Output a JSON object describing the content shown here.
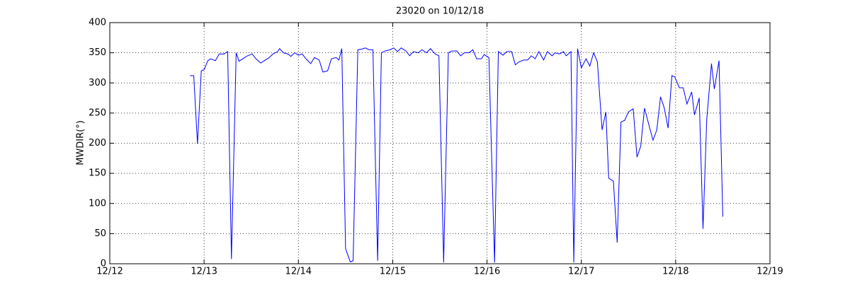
{
  "chart_data": {
    "type": "line",
    "title": "23020 on 10/12/18",
    "y_label": "MWDIR(°)",
    "xlim": [
      12,
      19
    ],
    "xticks": [
      {
        "value": 12,
        "label": "12/12"
      },
      {
        "value": 13,
        "label": "12/13"
      },
      {
        "value": 14,
        "label": "12/14"
      },
      {
        "value": 15,
        "label": "12/15"
      },
      {
        "value": 16,
        "label": "12/16"
      },
      {
        "value": 17,
        "label": "12/17"
      },
      {
        "value": 18,
        "label": "12/18"
      },
      {
        "value": 19,
        "label": "12/19"
      }
    ],
    "ylim": [
      0,
      400
    ],
    "yticks": [
      0,
      50,
      100,
      150,
      200,
      250,
      300,
      350,
      400
    ],
    "grid": true,
    "x": [
      12.85,
      12.89,
      12.93,
      12.97,
      13.0,
      13.04,
      13.07,
      13.12,
      13.16,
      13.21,
      13.25,
      13.29,
      13.34,
      13.37,
      13.42,
      13.46,
      13.51,
      13.55,
      13.6,
      13.64,
      13.69,
      13.73,
      13.78,
      13.8,
      13.84,
      13.89,
      13.92,
      13.96,
      14.0,
      14.04,
      14.08,
      14.13,
      14.17,
      14.22,
      14.26,
      14.31,
      14.35,
      14.4,
      14.43,
      14.46,
      14.5,
      14.55,
      14.58,
      14.63,
      14.67,
      14.71,
      14.75,
      14.79,
      14.84,
      14.88,
      14.92,
      14.97,
      15.01,
      15.05,
      15.09,
      15.14,
      15.18,
      15.22,
      15.27,
      15.31,
      15.36,
      15.4,
      15.45,
      15.49,
      15.54,
      15.59,
      15.63,
      15.68,
      15.72,
      15.76,
      15.81,
      15.85,
      15.89,
      15.94,
      15.97,
      16.02,
      16.08,
      16.12,
      16.17,
      16.21,
      16.26,
      16.3,
      16.34,
      16.39,
      16.43,
      16.47,
      16.51,
      16.55,
      16.6,
      16.64,
      16.69,
      16.72,
      16.77,
      16.81,
      16.84,
      16.89,
      16.92,
      16.96,
      17.0,
      17.05,
      17.09,
      17.13,
      17.17,
      17.22,
      17.26,
      17.29,
      17.34,
      17.38,
      17.42,
      17.46,
      17.5,
      17.55,
      17.59,
      17.63,
      17.67,
      17.72,
      17.76,
      17.8,
      17.84,
      17.88,
      17.92,
      17.96,
      17.99,
      18.04,
      18.08,
      18.12,
      18.17,
      18.2,
      18.25,
      18.29,
      18.33,
      18.38,
      18.41,
      18.46,
      18.5
    ],
    "series": [
      {
        "color": "#0000ff",
        "values": [
          312,
          312,
          199,
          320,
          322,
          337,
          340,
          337,
          348,
          348,
          352,
          8,
          350,
          336,
          341,
          345,
          348,
          340,
          333,
          337,
          342,
          348,
          352,
          357,
          350,
          348,
          344,
          350,
          346,
          348,
          340,
          332,
          342,
          338,
          318,
          320,
          340,
          342,
          338,
          357,
          25,
          3,
          5,
          355,
          356,
          358,
          355,
          355,
          5,
          350,
          353,
          355,
          358,
          352,
          358,
          353,
          345,
          352,
          350,
          355,
          350,
          357,
          348,
          345,
          2,
          350,
          353,
          353,
          345,
          350,
          350,
          355,
          340,
          340,
          347,
          342,
          2,
          352,
          346,
          352,
          352,
          330,
          335,
          338,
          338,
          345,
          340,
          352,
          338,
          352,
          345,
          350,
          348,
          352,
          345,
          352,
          2,
          357,
          325,
          340,
          328,
          350,
          335,
          222,
          252,
          142,
          137,
          35,
          235,
          238,
          252,
          257,
          177,
          195,
          258,
          228,
          205,
          222,
          277,
          258,
          225,
          312,
          310,
          292,
          292,
          265,
          285,
          247,
          275,
          58,
          240,
          332,
          290,
          337,
          78
        ]
      }
    ]
  }
}
